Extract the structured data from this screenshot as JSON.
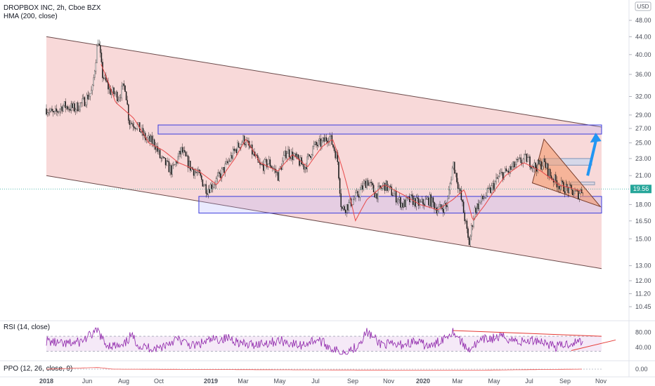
{
  "header": {
    "title": "DROPBOX INC, 2h, Cboe BZX",
    "indicator": "HMA (200, close)",
    "currency": "USD"
  },
  "chart_data": [
    {
      "type": "candlestick",
      "title": "DROPBOX INC, 2h, Cboe BZX",
      "y_axis_scale": "log",
      "ylim": [
        9.8,
        52
      ],
      "y_ticks": [
        "48.00",
        "44.00",
        "40.00",
        "36.00",
        "32.00",
        "29.00",
        "27.00",
        "25.00",
        "23.00",
        "21.00",
        "19.56",
        "18.00",
        "16.50",
        "15.00",
        "13.00",
        "12.00",
        "11.20",
        "10.45"
      ],
      "x_labels": [
        "2018",
        "Jun",
        "Aug",
        "Oct",
        "2019",
        "Mar",
        "May",
        "Jul",
        "Sep",
        "Nov",
        "2020",
        "Mar",
        "May",
        "Jul",
        "Sep",
        "Nov"
      ],
      "last_price": 19.56,
      "price_series": [
        {
          "d": "2018-03-23",
          "v": 30.0
        },
        {
          "d": "2018-04-05",
          "v": 29.0
        },
        {
          "d": "2018-04-20",
          "v": 30.5
        },
        {
          "d": "2018-05-10",
          "v": 30.0
        },
        {
          "d": "2018-05-25",
          "v": 31.0
        },
        {
          "d": "2018-06-10",
          "v": 33.0
        },
        {
          "d": "2018-06-20",
          "v": 43.5
        },
        {
          "d": "2018-06-27",
          "v": 36.0
        },
        {
          "d": "2018-07-10",
          "v": 33.0
        },
        {
          "d": "2018-07-25",
          "v": 32.0
        },
        {
          "d": "2018-08-05",
          "v": 34.0
        },
        {
          "d": "2018-08-12",
          "v": 28.0
        },
        {
          "d": "2018-08-25",
          "v": 27.5
        },
        {
          "d": "2018-09-10",
          "v": 25.5
        },
        {
          "d": "2018-09-25",
          "v": 25.0
        },
        {
          "d": "2018-10-05",
          "v": 23.0
        },
        {
          "d": "2018-10-25",
          "v": 21.5
        },
        {
          "d": "2018-11-10",
          "v": 24.0
        },
        {
          "d": "2018-11-25",
          "v": 22.0
        },
        {
          "d": "2018-12-10",
          "v": 21.0
        },
        {
          "d": "2018-12-24",
          "v": 19.5
        },
        {
          "d": "2019-01-10",
          "v": 20.5
        },
        {
          "d": "2019-01-25",
          "v": 22.0
        },
        {
          "d": "2019-02-10",
          "v": 24.0
        },
        {
          "d": "2019-02-25",
          "v": 25.5
        },
        {
          "d": "2019-03-10",
          "v": 24.0
        },
        {
          "d": "2019-03-25",
          "v": 22.0
        },
        {
          "d": "2019-04-10",
          "v": 22.5
        },
        {
          "d": "2019-04-25",
          "v": 21.0
        },
        {
          "d": "2019-05-10",
          "v": 24.0
        },
        {
          "d": "2019-05-25",
          "v": 23.0
        },
        {
          "d": "2019-06-10",
          "v": 22.0
        },
        {
          "d": "2019-06-25",
          "v": 24.5
        },
        {
          "d": "2019-07-10",
          "v": 25.0
        },
        {
          "d": "2019-07-22",
          "v": 26.0
        },
        {
          "d": "2019-08-05",
          "v": 23.0
        },
        {
          "d": "2019-08-12",
          "v": 17.5
        },
        {
          "d": "2019-08-25",
          "v": 18.0
        },
        {
          "d": "2019-09-10",
          "v": 19.0
        },
        {
          "d": "2019-09-25",
          "v": 20.5
        },
        {
          "d": "2019-10-10",
          "v": 19.0
        },
        {
          "d": "2019-10-25",
          "v": 20.0
        },
        {
          "d": "2019-11-10",
          "v": 19.0
        },
        {
          "d": "2019-11-25",
          "v": 18.0
        },
        {
          "d": "2019-12-10",
          "v": 18.5
        },
        {
          "d": "2019-12-25",
          "v": 18.0
        },
        {
          "d": "2020-01-10",
          "v": 18.5
        },
        {
          "d": "2020-01-25",
          "v": 17.5
        },
        {
          "d": "2020-02-10",
          "v": 18.0
        },
        {
          "d": "2020-02-20",
          "v": 22.5
        },
        {
          "d": "2020-02-25",
          "v": 21.0
        },
        {
          "d": "2020-03-10",
          "v": 17.0
        },
        {
          "d": "2020-03-18",
          "v": 14.5
        },
        {
          "d": "2020-03-28",
          "v": 17.5
        },
        {
          "d": "2020-04-10",
          "v": 18.5
        },
        {
          "d": "2020-04-25",
          "v": 19.5
        },
        {
          "d": "2020-05-10",
          "v": 21.0
        },
        {
          "d": "2020-05-25",
          "v": 21.5
        },
        {
          "d": "2020-06-10",
          "v": 22.5
        },
        {
          "d": "2020-06-25",
          "v": 23.0
        },
        {
          "d": "2020-07-10",
          "v": 22.0
        },
        {
          "d": "2020-07-25",
          "v": 22.5
        },
        {
          "d": "2020-08-05",
          "v": 21.0
        },
        {
          "d": "2020-08-20",
          "v": 20.0
        },
        {
          "d": "2020-09-05",
          "v": 19.5
        },
        {
          "d": "2020-09-20",
          "v": 19.0
        },
        {
          "d": "2020-09-30",
          "v": 19.6
        }
      ],
      "hma_series": [
        {
          "d": "2018-06-25",
          "v": 38.0
        },
        {
          "d": "2018-07-20",
          "v": 31.0
        },
        {
          "d": "2018-08-20",
          "v": 28.5
        },
        {
          "d": "2018-09-15",
          "v": 25.0
        },
        {
          "d": "2018-10-10",
          "v": 24.0
        },
        {
          "d": "2018-11-05",
          "v": 22.5
        },
        {
          "d": "2018-12-10",
          "v": 21.5
        },
        {
          "d": "2019-01-10",
          "v": 20.0
        },
        {
          "d": "2019-02-10",
          "v": 23.0
        },
        {
          "d": "2019-03-01",
          "v": 25.5
        },
        {
          "d": "2019-03-25",
          "v": 22.5
        },
        {
          "d": "2019-04-25",
          "v": 21.5
        },
        {
          "d": "2019-05-20",
          "v": 23.5
        },
        {
          "d": "2019-06-15",
          "v": 22.0
        },
        {
          "d": "2019-07-10",
          "v": 24.5
        },
        {
          "d": "2019-07-28",
          "v": 25.5
        },
        {
          "d": "2019-08-15",
          "v": 21.5
        },
        {
          "d": "2019-09-05",
          "v": 16.5
        },
        {
          "d": "2019-09-25",
          "v": 18.5
        },
        {
          "d": "2019-10-25",
          "v": 20.0
        },
        {
          "d": "2019-11-25",
          "v": 19.0
        },
        {
          "d": "2019-12-25",
          "v": 18.0
        },
        {
          "d": "2020-01-25",
          "v": 17.5
        },
        {
          "d": "2020-02-20",
          "v": 18.5
        },
        {
          "d": "2020-03-10",
          "v": 19.5
        },
        {
          "d": "2020-03-25",
          "v": 16.5
        },
        {
          "d": "2020-04-15",
          "v": 18.0
        },
        {
          "d": "2020-05-20",
          "v": 21.0
        },
        {
          "d": "2020-06-20",
          "v": 22.5
        },
        {
          "d": "2020-07-20",
          "v": 21.5
        },
        {
          "d": "2020-08-20",
          "v": 20.0
        },
        {
          "d": "2020-09-30",
          "v": 19.3
        }
      ],
      "annotations": {
        "channel": {
          "upper": [
            {
              "d": "2018-03-23",
              "v": 44.0
            },
            {
              "d": "2020-11-01",
              "v": 27.2
            }
          ],
          "lower": [
            {
              "d": "2018-03-23",
              "v": 21.0
            },
            {
              "d": "2020-11-01",
              "v": 12.8
            }
          ]
        },
        "resistance_box": {
          "d0": "2018-10-01",
          "d1": "2020-11-01",
          "v0": 26.2,
          "v1": 27.5
        },
        "support_box": {
          "d0": "2018-12-10",
          "d1": "2020-11-01",
          "v0": 17.2,
          "v1": 18.8
        },
        "target_box": {
          "d0": "2020-07-25",
          "d1": "2020-10-15",
          "v0": 22.2,
          "v1": 23.0
        },
        "small_box": {
          "d0": "2020-09-10",
          "d1": "2020-10-20",
          "v0": 20.0,
          "v1": 20.3
        },
        "wedge": [
          {
            "d": "2020-07-25",
            "v": 25.5
          },
          {
            "d": "2020-07-05",
            "v": 20.2
          },
          {
            "d": "2020-10-30",
            "v": 17.8
          }
        ],
        "arrow": [
          {
            "d": "2020-10-08",
            "v": 21.0
          },
          {
            "d": "2020-10-22",
            "v": 25.8
          }
        ]
      }
    },
    {
      "type": "line",
      "title": "RSI (14, close)",
      "ylim": [
        20,
        100
      ],
      "y_ticks": [
        "80.00",
        "40.00"
      ],
      "band": [
        30,
        70
      ],
      "series": [
        {
          "d": "2018-03-23",
          "v": 58
        },
        {
          "d": "2018-04-20",
          "v": 48
        },
        {
          "d": "2018-05-20",
          "v": 55
        },
        {
          "d": "2018-06-20",
          "v": 85
        },
        {
          "d": "2018-07-01",
          "v": 50
        },
        {
          "d": "2018-08-01",
          "v": 40
        },
        {
          "d": "2018-08-15",
          "v": 72
        },
        {
          "d": "2018-09-01",
          "v": 42
        },
        {
          "d": "2018-10-01",
          "v": 38
        },
        {
          "d": "2018-11-01",
          "v": 62
        },
        {
          "d": "2018-12-01",
          "v": 44
        },
        {
          "d": "2019-01-01",
          "v": 60
        },
        {
          "d": "2019-02-01",
          "v": 65
        },
        {
          "d": "2019-03-01",
          "v": 46
        },
        {
          "d": "2019-04-01",
          "v": 52
        },
        {
          "d": "2019-05-01",
          "v": 58
        },
        {
          "d": "2019-06-01",
          "v": 45
        },
        {
          "d": "2019-07-01",
          "v": 62
        },
        {
          "d": "2019-08-10",
          "v": 25
        },
        {
          "d": "2019-09-05",
          "v": 40
        },
        {
          "d": "2019-09-25",
          "v": 82
        },
        {
          "d": "2019-10-15",
          "v": 52
        },
        {
          "d": "2019-11-15",
          "v": 45
        },
        {
          "d": "2019-12-15",
          "v": 55
        },
        {
          "d": "2020-01-15",
          "v": 42
        },
        {
          "d": "2020-02-20",
          "v": 85
        },
        {
          "d": "2020-03-15",
          "v": 35
        },
        {
          "d": "2020-04-15",
          "v": 62
        },
        {
          "d": "2020-05-15",
          "v": 68
        },
        {
          "d": "2020-06-15",
          "v": 55
        },
        {
          "d": "2020-07-15",
          "v": 60
        },
        {
          "d": "2020-08-15",
          "v": 42
        },
        {
          "d": "2020-09-10",
          "v": 52
        },
        {
          "d": "2020-09-30",
          "v": 58
        }
      ],
      "annotations": {
        "upper_trend": [
          {
            "d": "2020-02-20",
            "v": 85
          },
          {
            "d": "2020-11-01",
            "v": 70
          }
        ],
        "lower_trend": [
          {
            "d": "2020-09-10",
            "v": 32
          },
          {
            "d": "2020-11-01",
            "v": 56
          }
        ]
      }
    },
    {
      "type": "line",
      "title": "PPO (12, 26, close, 9)",
      "y_ticks": [
        "0.00"
      ],
      "series": [
        {
          "d": "2018-03-23",
          "v": 0.0
        },
        {
          "d": "2018-06-20",
          "v": 0.6
        },
        {
          "d": "2018-07-15",
          "v": 0.0
        },
        {
          "d": "2019-08-10",
          "v": -0.3
        },
        {
          "d": "2020-03-15",
          "v": -0.4
        },
        {
          "d": "2020-09-30",
          "v": 0.0
        }
      ]
    }
  ]
}
